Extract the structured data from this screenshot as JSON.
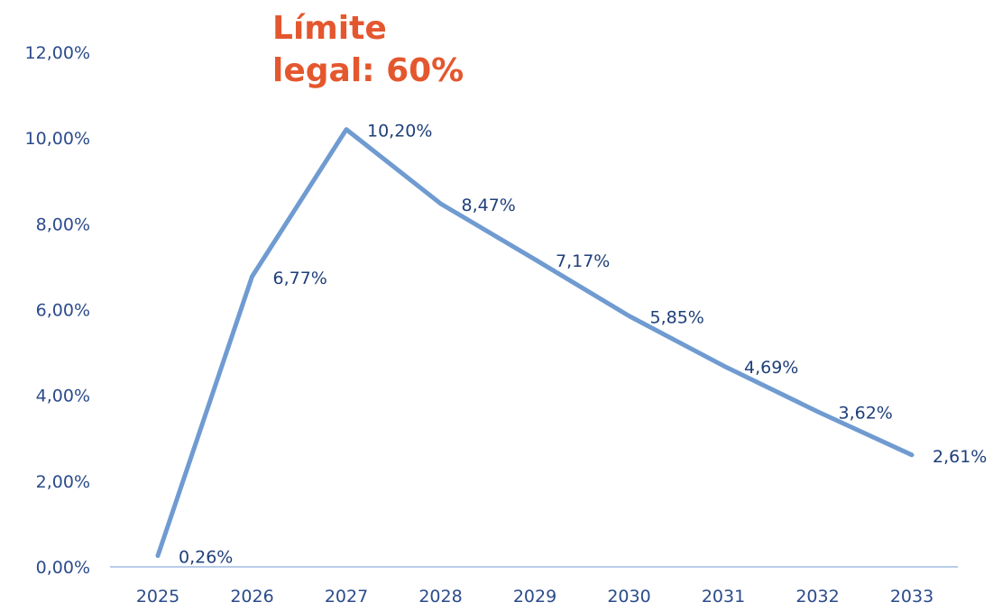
{
  "chart_data": {
    "type": "line",
    "title": "",
    "xlabel": "",
    "ylabel": "",
    "categories": [
      "2025",
      "2026",
      "2027",
      "2028",
      "2029",
      "2030",
      "2031",
      "2032",
      "2033"
    ],
    "series": [
      {
        "values": [
          0.26,
          6.77,
          10.2,
          8.47,
          7.17,
          5.85,
          4.69,
          3.62,
          2.61
        ],
        "data_labels": [
          "0,26%",
          "6,77%",
          "10,20%",
          "8,47%",
          "7,17%",
          "5,85%",
          "4,69%",
          "3,62%",
          "2,61%"
        ],
        "color": "#6f9bd1"
      }
    ],
    "ylim": [
      0,
      12
    ],
    "yticks": [
      0,
      2,
      4,
      6,
      8,
      10,
      12
    ],
    "ytick_labels": [
      "0,00%",
      "2,00%",
      "4,00%",
      "6,00%",
      "8,00%",
      "10,00%",
      "12,00%"
    ],
    "grid": false,
    "legend": "none"
  },
  "annotation": {
    "line1": "Límite",
    "line2": "legal: 60%",
    "color": "#e4572e"
  },
  "colors": {
    "axis_text": "#2b4b8c",
    "axis_line": "#b8cce8"
  }
}
